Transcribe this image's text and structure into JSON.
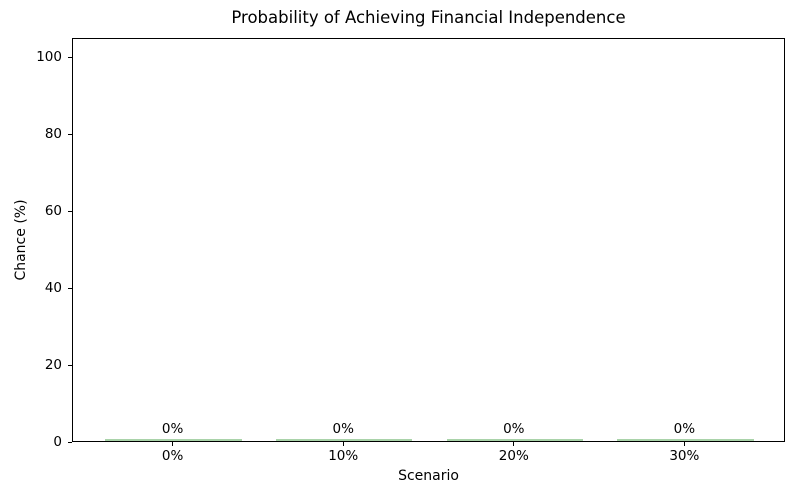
{
  "chart_data": {
    "type": "bar",
    "title": "Probability of Achieving Financial Independence",
    "xlabel": "Scenario",
    "ylabel": "Chance (%)",
    "categories": [
      "0%",
      "10%",
      "20%",
      "30%"
    ],
    "values": [
      0,
      0,
      0,
      0
    ],
    "bar_labels": [
      "0%",
      "0%",
      "0%",
      "0%"
    ],
    "yticks": [
      0,
      20,
      40,
      60,
      80,
      100
    ],
    "ytick_labels": [
      "0",
      "20",
      "40",
      "60",
      "80",
      "100"
    ],
    "ylim": [
      0,
      105
    ],
    "xlim": [
      -0.59,
      3.59
    ],
    "bar_width": 0.8,
    "grid": false,
    "legend_position": "none",
    "colors": {
      "bar_fill": "#a9d3a9",
      "axis": "#000000",
      "text": "#000000",
      "background": "#ffffff"
    }
  }
}
